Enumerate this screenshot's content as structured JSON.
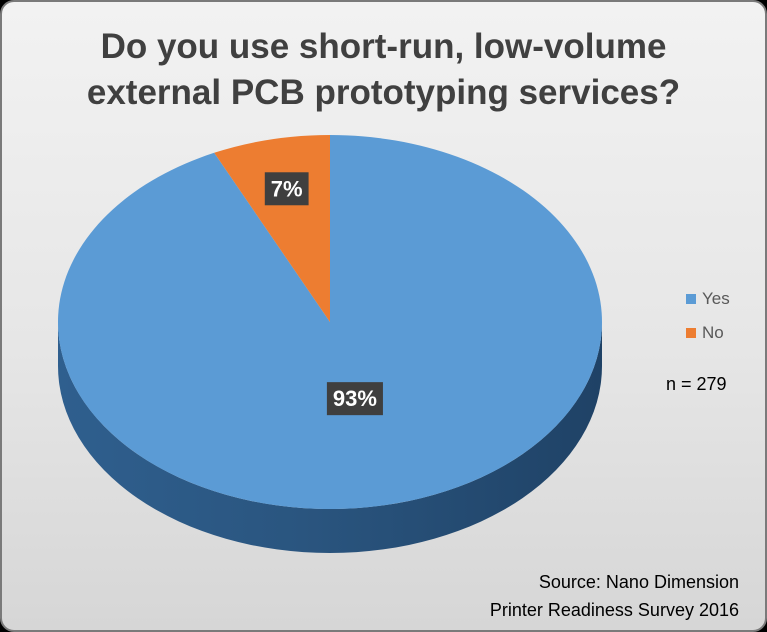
{
  "chart_data": {
    "type": "pie",
    "title_lines": [
      "Do you use short-run, low-volume",
      "external PCB prototyping services?"
    ],
    "categories": [
      "Yes",
      "No"
    ],
    "values": [
      93,
      7
    ],
    "data_labels": [
      "93%",
      "7%"
    ],
    "colors": [
      "#5b9bd5",
      "#ed7d31"
    ],
    "legend_position": "right",
    "annotations": {
      "sample_size": "n = 279",
      "source_line1": "Source: Nano Dimension",
      "source_line2": "Printer Readiness Survey 2016"
    }
  }
}
